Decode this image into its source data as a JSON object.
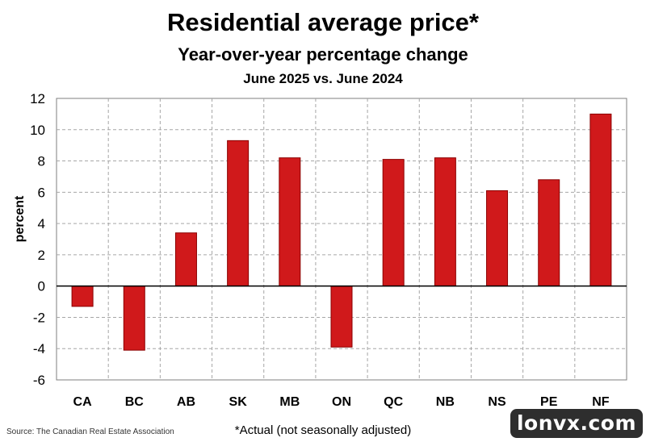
{
  "header": {
    "title": "Residential average price*",
    "subtitle": "Year-over-year percentage change",
    "period": "June 2025 vs. June 2024"
  },
  "footer": {
    "source": "Source: The Canadian Real Estate Association",
    "footnote": "*Actual (not seasonally adjusted)"
  },
  "watermark": "lonvx.com",
  "chart_data": {
    "type": "bar",
    "title": "Residential average price*",
    "subtitle": "Year-over-year percentage change",
    "xlabel": "",
    "ylabel": "percent",
    "categories": [
      "CA",
      "BC",
      "AB",
      "SK",
      "MB",
      "ON",
      "QC",
      "NB",
      "NS",
      "PE",
      "NF"
    ],
    "values": [
      -1.3,
      -4.1,
      3.4,
      9.3,
      8.2,
      -3.9,
      8.1,
      8.2,
      6.1,
      6.8,
      11.0
    ],
    "ylim": [
      -6,
      12
    ],
    "yticks": [
      -6,
      -4,
      -2,
      0,
      2,
      4,
      6,
      8,
      10,
      12
    ],
    "grid": true,
    "bar_color": "#d0191b"
  }
}
